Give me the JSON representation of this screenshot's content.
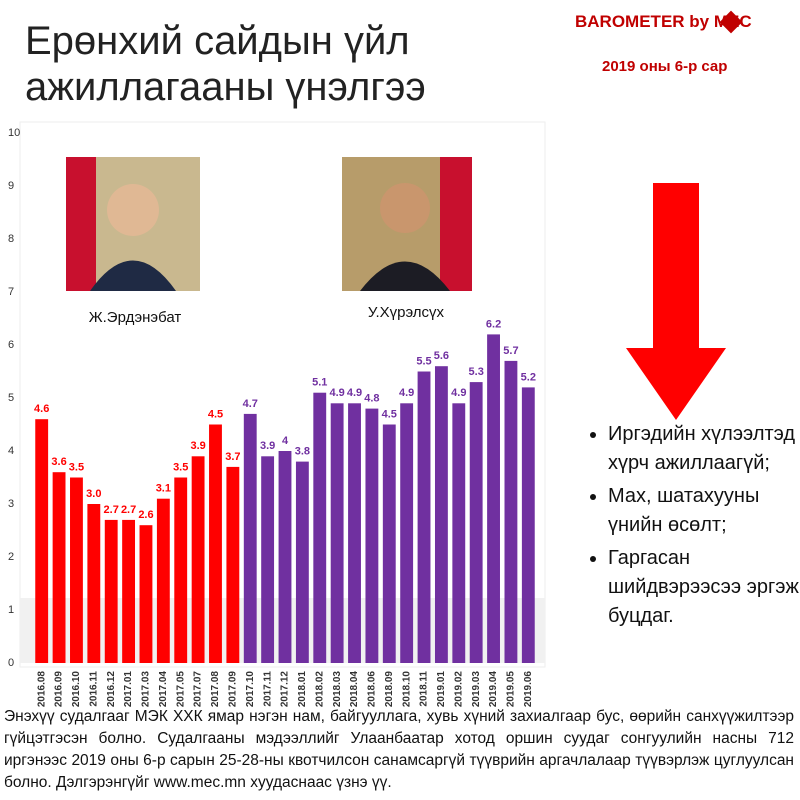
{
  "chart_data": {
    "type": "bar",
    "title": "Ерөнхий сайдын үйл ажиллагааны үнэлгээ",
    "brand": "BAROMETER by MEC",
    "subtitle": "2019 оны 6-р сар",
    "categories": [
      "2016.08",
      "2016.09",
      "2016.10",
      "2016.11",
      "2016.12",
      "2017.01",
      "2017.03",
      "2017.04",
      "2017.05",
      "2017.07",
      "2017.08",
      "2017.09",
      "2017.10",
      "2017.11",
      "2017.12",
      "2018.01",
      "2018.02",
      "2018.03",
      "2018.04",
      "2018.06",
      "2018.09",
      "2018.10",
      "2018.11",
      "2019.01",
      "2019.02",
      "2019.03",
      "2019.04",
      "2019.05",
      "2019.06"
    ],
    "series": [
      {
        "name": "Ж.Эрдэнэбат",
        "color": "#ff0000",
        "values": [
          4.6,
          3.6,
          3.5,
          3,
          2.7,
          2.7,
          2.6,
          3.1,
          3.5,
          3.9,
          4.5,
          3.7,
          null,
          null,
          null,
          null,
          null,
          null,
          null,
          null,
          null,
          null,
          null,
          null,
          null,
          null,
          null,
          null,
          null
        ],
        "value_labels": [
          "4.6",
          "3.6",
          "3.5",
          "3.0",
          "2.7",
          "2.7",
          "2.6",
          "3.1",
          "3.5",
          "3.9",
          "4.5",
          "3.7",
          null,
          null,
          null,
          null,
          null,
          null,
          null,
          null,
          null,
          null,
          null,
          null,
          null,
          null,
          null,
          null,
          null
        ]
      },
      {
        "name": "У.Хүрэлсүх",
        "color": "#7030a0",
        "values": [
          null,
          null,
          null,
          null,
          null,
          null,
          null,
          null,
          null,
          null,
          null,
          null,
          4.7,
          3.9,
          4,
          3.8,
          5.1,
          4.9,
          4.9,
          4.8,
          4.5,
          4.9,
          5.5,
          5.6,
          4.9,
          5.3,
          6.2,
          5.7,
          5.2
        ],
        "value_labels": [
          null,
          null,
          null,
          null,
          null,
          null,
          null,
          null,
          null,
          null,
          null,
          null,
          "4.7",
          "3.9",
          "4",
          "3.8",
          "5.1",
          "4.9",
          "4.9",
          "4.8",
          "4.5",
          "4.9",
          "5.5",
          "5.6",
          "4.9",
          "5.3",
          "6.2",
          "5.7",
          "5.2"
        ]
      }
    ],
    "ylim": [
      0,
      10
    ],
    "yticks": [
      0,
      1,
      2,
      3,
      4,
      5,
      6,
      7,
      8,
      9,
      10
    ],
    "grid": false,
    "bullets": [
      "Иргэдийн хүлээлтэд хүрч ажиллаагүй;",
      "Мах, шатахууны үнийн өсөлт;",
      "Гаргасан шийдвэрээсээ эргэж буцдаг."
    ],
    "footnote": "Энэхүү судалгааг МЭК ХХК ямар нэгэн нам, байгууллага, хувь хүний захиалгаар бус, өөрийн санхүүжилтээр гүйцэтгэсэн болно. Судалгааны мэдээллийг Улаанбаатар хотод оршин суудаг сонгуулийн насны 712 иргэнээс 2019 оны 6-р сарын 25-28-ны квотчилсон санамсаргүй түүврийн аргачлалаар түүвэрлэж цуглуулсан болно. Дэлгэрэнгүйг www.mec.mn хуудаснаас үзнэ үү."
  }
}
